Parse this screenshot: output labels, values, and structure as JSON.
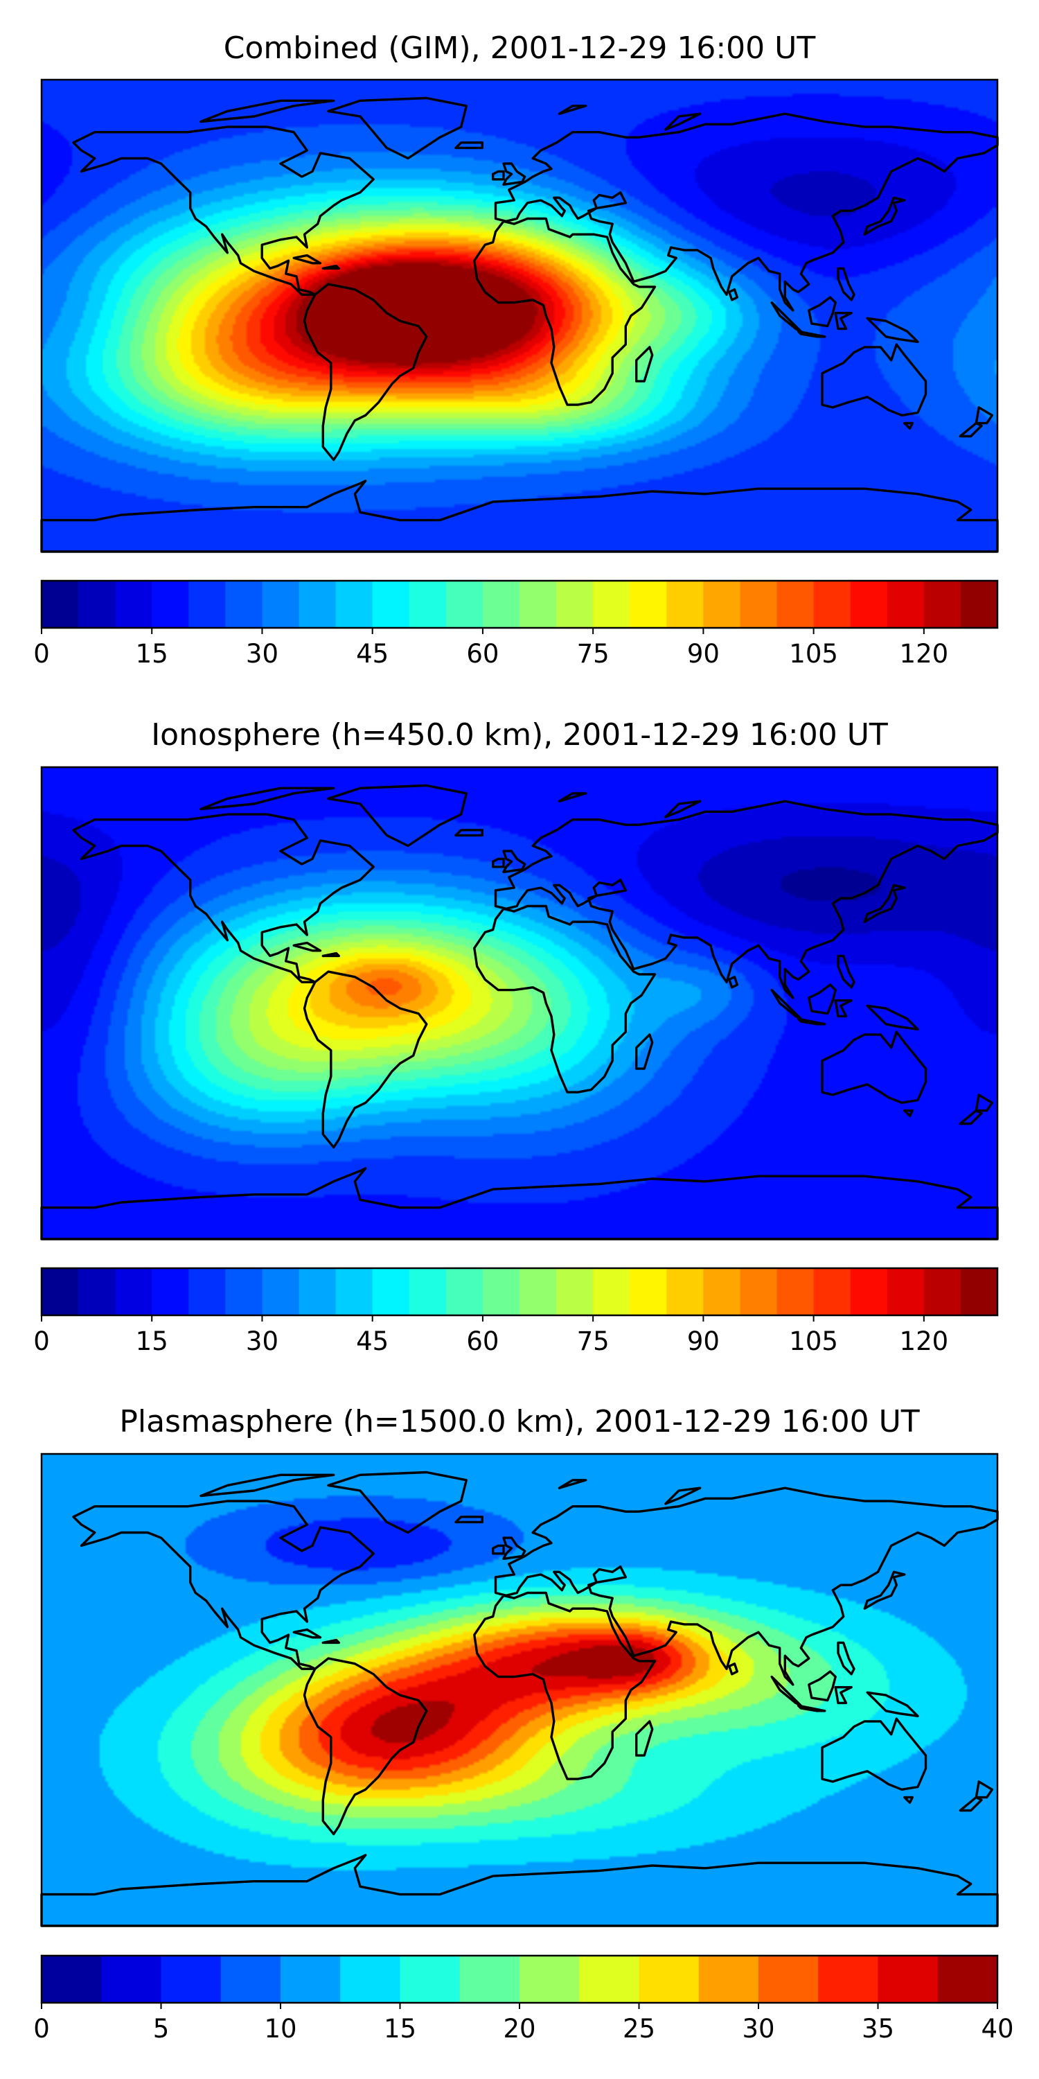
{
  "panels": [
    {
      "title": "Combined (GIM), 2001-12-29 16:00 UT",
      "colorbar": {
        "min": 0,
        "max": 130,
        "levels": 26,
        "ticks": [
          0,
          15,
          30,
          45,
          60,
          75,
          90,
          105,
          120
        ]
      },
      "background_level": 22,
      "blobs": [
        {
          "lon": -60,
          "lat": 0,
          "amp": 88,
          "sx": 65,
          "sy": 28
        },
        {
          "lon": -10,
          "lat": 3,
          "amp": 55,
          "sx": 40,
          "sy": 22
        },
        {
          "lon": -50,
          "lat": 3,
          "amp": 35,
          "sx": 18,
          "sy": 10
        },
        {
          "lon": -105,
          "lat": -28,
          "amp": 22,
          "sx": 40,
          "sy": 18
        },
        {
          "lon": 20,
          "lat": -35,
          "amp": 22,
          "sx": 35,
          "sy": 12
        },
        {
          "lon": 65,
          "lat": 0,
          "amp": 12,
          "sx": 20,
          "sy": 12
        },
        {
          "lon": 110,
          "lat": 45,
          "amp": -14,
          "sx": 60,
          "sy": 20
        },
        {
          "lon": -165,
          "lat": 0,
          "amp": -8,
          "sx": 20,
          "sy": 15
        }
      ]
    },
    {
      "title": "Ionosphere  (h=450.0 km), 2001-12-29 16:00 UT",
      "colorbar": {
        "min": 0,
        "max": 130,
        "levels": 26,
        "ticks": [
          0,
          15,
          30,
          45,
          60,
          75,
          90,
          105,
          120
        ]
      },
      "background_level": 18,
      "blobs": [
        {
          "lon": -60,
          "lat": 5,
          "amp": 62,
          "sx": 50,
          "sy": 25
        },
        {
          "lon": -50,
          "lat": 8,
          "amp": 14,
          "sx": 15,
          "sy": 8
        },
        {
          "lon": -100,
          "lat": -28,
          "amp": 22,
          "sx": 35,
          "sy": 20
        },
        {
          "lon": 5,
          "lat": -10,
          "amp": 22,
          "sx": 40,
          "sy": 30
        },
        {
          "lon": 115,
          "lat": 45,
          "amp": -14,
          "sx": 55,
          "sy": 18
        },
        {
          "lon": -170,
          "lat": 10,
          "amp": -10,
          "sx": 20,
          "sy": 30
        },
        {
          "lon": 70,
          "lat": 5,
          "amp": 10,
          "sx": 15,
          "sy": 10
        }
      ]
    },
    {
      "title": "Plasmasphere (h=1500.0 km), 2001-12-29 16:00 UT",
      "colorbar": {
        "min": 0,
        "max": 40,
        "levels": 16,
        "ticks": [
          0,
          5,
          10,
          15,
          20,
          25,
          30,
          35,
          40
        ]
      },
      "background_level": 11,
      "blobs": [
        {
          "lon": -40,
          "lat": -12,
          "amp": 22,
          "sx": 40,
          "sy": 20
        },
        {
          "lon": 25,
          "lat": 12,
          "amp": 22,
          "sx": 40,
          "sy": 15
        },
        {
          "lon": 45,
          "lat": 12,
          "amp": 6,
          "sx": 15,
          "sy": 8
        },
        {
          "lon": -80,
          "lat": -28,
          "amp": 8,
          "sx": 40,
          "sy": 20
        },
        {
          "lon": 100,
          "lat": 0,
          "amp": 6,
          "sx": 40,
          "sy": 20
        },
        {
          "lon": -60,
          "lat": 55,
          "amp": -6,
          "sx": 35,
          "sy": 10
        },
        {
          "lon": 20,
          "lat": -40,
          "amp": 5,
          "sx": 50,
          "sy": 15
        }
      ]
    }
  ]
}
